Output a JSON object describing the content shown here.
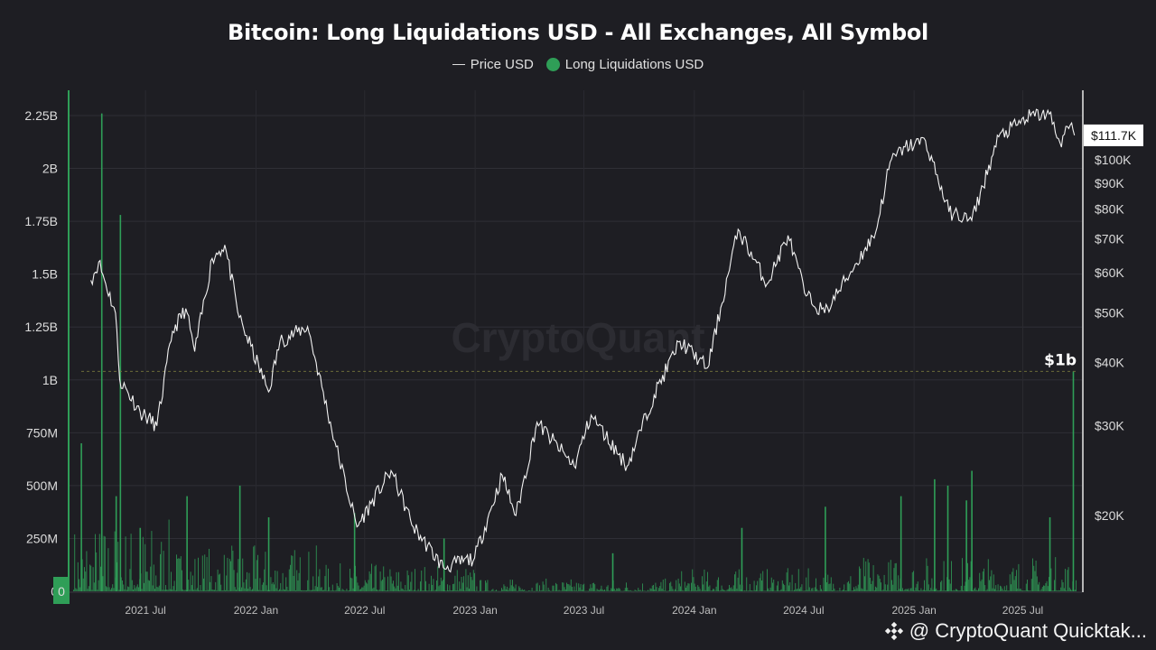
{
  "chart_data": {
    "type": "bar",
    "title": "Bitcoin: Long Liquidations USD - All Exchanges, All Symbol",
    "legend": [
      "Price USD",
      "Long Liquidations USD"
    ],
    "legend_placement": "top-center",
    "watermark": "CryptoQuant",
    "grid": true,
    "y_left": {
      "ticks": [
        "0",
        "250M",
        "500M",
        "750M",
        "1B",
        "1.25B",
        "1.5B",
        "1.75B",
        "2B",
        "2.25B"
      ],
      "range": [
        0,
        2250000000
      ]
    },
    "y_right": {
      "scale": "log",
      "ticks": [
        "$20K",
        "$30K",
        "$40K",
        "$50K",
        "$60K",
        "$70K",
        "$80K",
        "$90K",
        "$100K"
      ],
      "last_price_label": "$111.7K"
    },
    "x_ticks": [
      "2021 Jul",
      "2022 Jan",
      "2022 Jul",
      "2023 Jan",
      "2023 Jul",
      "2024 Jan",
      "2024 Jul",
      "2025 Jan",
      "2025 Jul"
    ],
    "annotation": "$1b",
    "series": [
      {
        "name": "Price USD",
        "color": "#ffffff",
        "points": [
          [
            "2021-04-01",
            58000
          ],
          [
            "2021-04-14",
            63000
          ],
          [
            "2021-05-12",
            50000
          ],
          [
            "2021-05-19",
            37000
          ],
          [
            "2021-06-22",
            32000
          ],
          [
            "2021-07-20",
            30000
          ],
          [
            "2021-08-15",
            46000
          ],
          [
            "2021-09-06",
            51000
          ],
          [
            "2021-09-21",
            42000
          ],
          [
            "2021-10-20",
            64000
          ],
          [
            "2021-11-10",
            68000
          ],
          [
            "2021-12-04",
            49000
          ],
          [
            "2022-01-22",
            35000
          ],
          [
            "2022-02-10",
            44000
          ],
          [
            "2022-03-28",
            47000
          ],
          [
            "2022-05-12",
            28000
          ],
          [
            "2022-06-18",
            19000
          ],
          [
            "2022-08-14",
            24500
          ],
          [
            "2022-09-20",
            19000
          ],
          [
            "2022-11-09",
            15800
          ],
          [
            "2022-12-31",
            16500
          ],
          [
            "2023-02-15",
            24000
          ],
          [
            "2023-03-10",
            20000
          ],
          [
            "2023-04-14",
            30500
          ],
          [
            "2023-06-15",
            25000
          ],
          [
            "2023-07-13",
            31500
          ],
          [
            "2023-09-11",
            25000
          ],
          [
            "2023-10-26",
            34500
          ],
          [
            "2023-12-08",
            44000
          ],
          [
            "2024-01-23",
            39000
          ],
          [
            "2024-03-14",
            73000
          ],
          [
            "2024-05-01",
            57000
          ],
          [
            "2024-06-05",
            71000
          ],
          [
            "2024-07-05",
            54000
          ],
          [
            "2024-08-05",
            50000
          ],
          [
            "2024-10-29",
            72000
          ],
          [
            "2024-11-22",
            99000
          ],
          [
            "2024-12-17",
            106000
          ],
          [
            "2025-01-20",
            109000
          ],
          [
            "2025-02-28",
            79000
          ],
          [
            "2025-04-07",
            76000
          ],
          [
            "2025-05-22",
            111000
          ],
          [
            "2025-07-14",
            122000
          ],
          [
            "2025-08-14",
            123000
          ],
          [
            "2025-09-01",
            108000
          ],
          [
            "2025-09-18",
            117000
          ],
          [
            "2025-09-25",
            111700
          ]
        ]
      },
      {
        "name": "Long Liquidations USD",
        "color": "#2f9e57",
        "spikes": [
          [
            "2021-03-15",
            700000000
          ],
          [
            "2021-04-18",
            2260000000
          ],
          [
            "2021-05-12",
            450000000
          ],
          [
            "2021-05-19",
            1780000000
          ],
          [
            "2021-06-21",
            300000000
          ],
          [
            "2021-09-07",
            450000000
          ],
          [
            "2021-12-04",
            500000000
          ],
          [
            "2022-01-21",
            350000000
          ],
          [
            "2022-06-13",
            370000000
          ],
          [
            "2022-11-09",
            250000000
          ],
          [
            "2023-08-17",
            180000000
          ],
          [
            "2024-03-19",
            300000000
          ],
          [
            "2024-08-05",
            400000000
          ],
          [
            "2024-12-09",
            450000000
          ],
          [
            "2025-02-03",
            530000000
          ],
          [
            "2025-02-25",
            500000000
          ],
          [
            "2025-03-28",
            430000000
          ],
          [
            "2025-04-06",
            570000000
          ],
          [
            "2025-08-14",
            350000000
          ],
          [
            "2025-09-22",
            1040000000
          ]
        ]
      }
    ]
  }
}
